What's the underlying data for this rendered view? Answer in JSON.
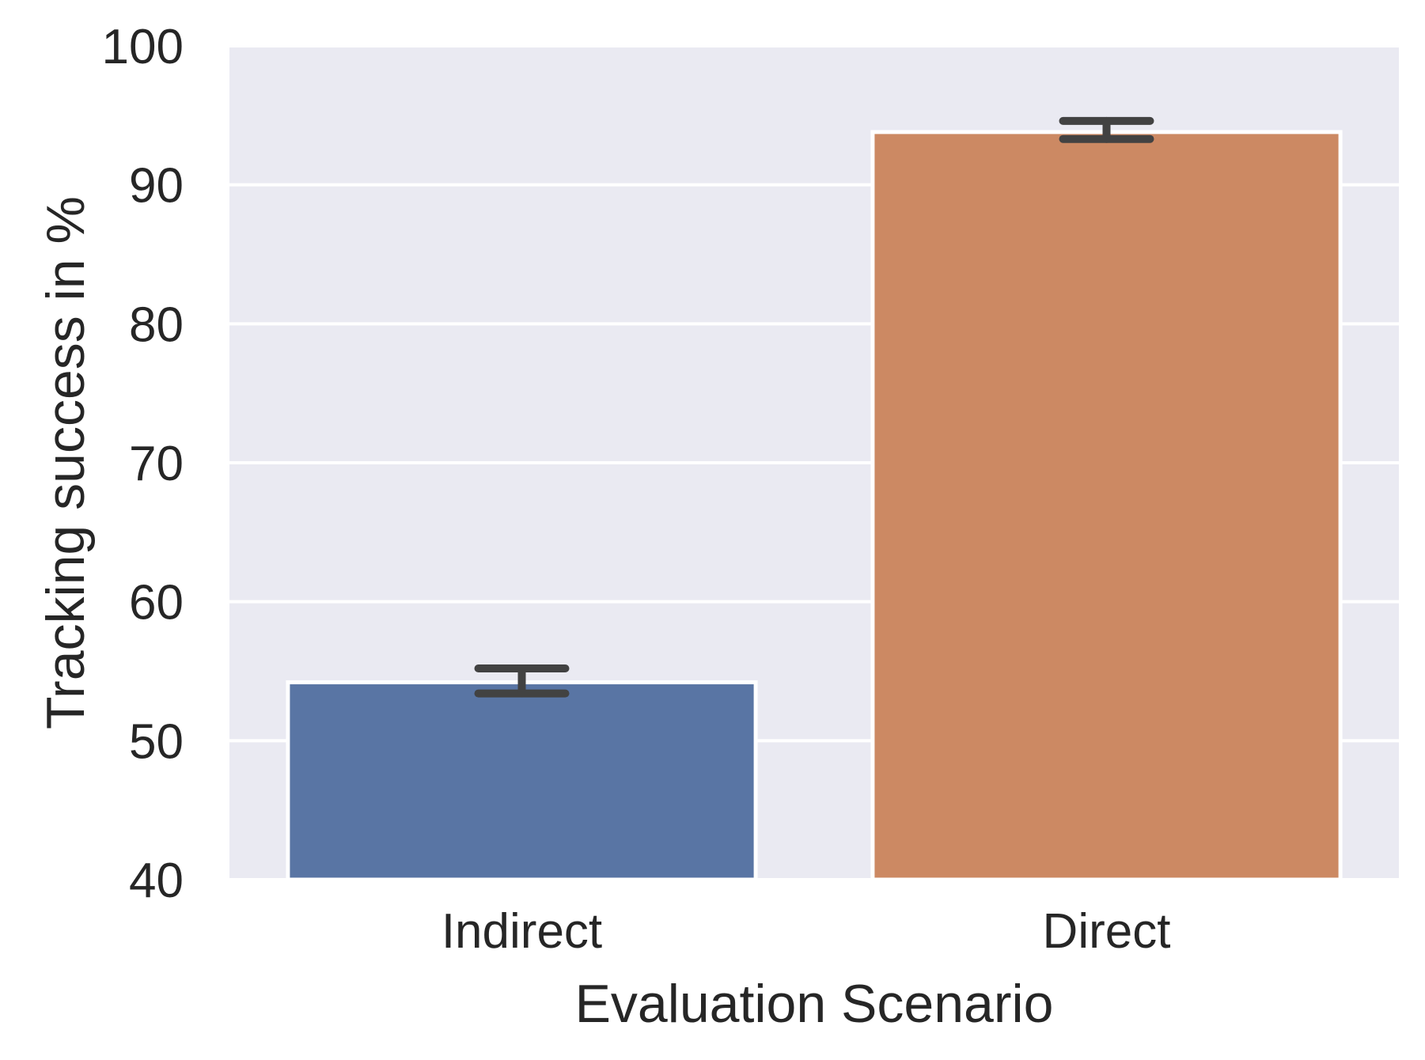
{
  "chart_data": {
    "type": "bar",
    "title": "",
    "xlabel": "Evaluation Scenario",
    "ylabel": "Tracking success in %",
    "categories": [
      "Indirect",
      "Direct"
    ],
    "values": [
      54.2,
      93.8
    ],
    "error_bars": [
      {
        "low": 53.4,
        "high": 55.2
      },
      {
        "low": 93.3,
        "high": 94.6
      }
    ],
    "bar_colors": [
      "#5975a4",
      "#cc8963"
    ],
    "error_bar_color": "#424242",
    "ylim": [
      40,
      100
    ],
    "yticks": [
      40,
      50,
      60,
      70,
      80,
      90,
      100
    ],
    "ytick_labels": [
      "40",
      "50",
      "60",
      "70",
      "80",
      "90",
      "100"
    ],
    "grid": "horizontal",
    "background": "#eaeaf2",
    "legend": "none"
  }
}
